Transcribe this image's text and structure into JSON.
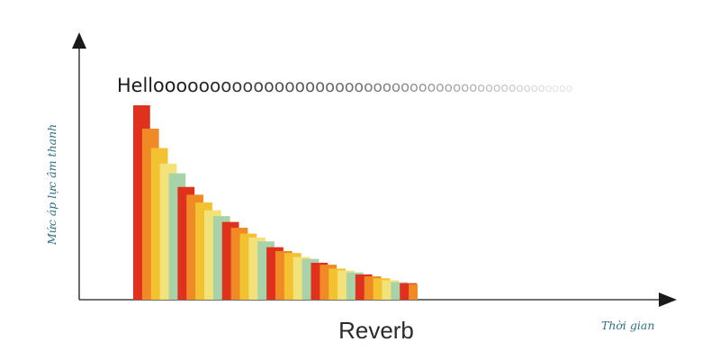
{
  "hello_text": "Helloooooooooooooooooooooooooooooooooooooooooooooo",
  "y_axis_label": "Mức áp lực âm thanh",
  "x_axis_label": "Thời gian",
  "caption": "Reverb",
  "colors": {
    "axis": "#1a1a1a",
    "label": "#2f6f86",
    "bar_cycle": [
      "#e0301e",
      "#f08a24",
      "#f2c230",
      "#f3e27a",
      "#a8d3a8"
    ]
  },
  "chart_data": {
    "type": "bar",
    "description_values": "relative sound pressure level of successive reflections, decaying over time",
    "values": [
      100,
      88,
      78,
      70,
      65,
      58,
      54,
      50,
      46,
      43,
      40,
      37,
      34,
      32,
      30,
      27,
      25,
      24,
      22,
      21,
      19,
      18,
      16,
      15,
      14,
      13,
      12,
      11,
      10,
      9,
      8.5,
      8
    ],
    "xlabel": "Thời gian",
    "ylabel": "Mức áp lực âm thanh",
    "ylim": [
      0,
      100
    ]
  }
}
